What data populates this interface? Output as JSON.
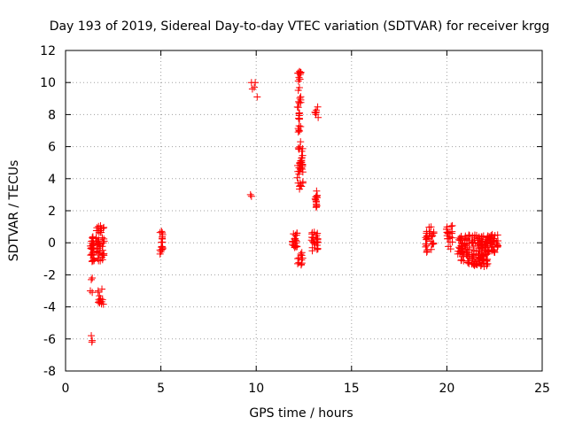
{
  "chart_data": {
    "type": "scatter",
    "title": "Day 193 of 2019, Sidereal Day-to-day VTEC variation (SDTVAR) for receiver krgg",
    "xlabel": "GPS time / hours",
    "ylabel": "SDTVAR / TECUs",
    "xlim": [
      0,
      25
    ],
    "ylim": [
      -8,
      12
    ],
    "xticks": [
      0,
      5,
      10,
      15,
      20,
      25
    ],
    "yticks": [
      -8,
      -6,
      -4,
      -2,
      0,
      2,
      4,
      6,
      8,
      10,
      12
    ],
    "grid": true,
    "marker": "plus",
    "color": "#ff0000",
    "clusters": [
      {
        "x": [
          1.3,
          1.5
        ],
        "y": [
          -1.2,
          0.6
        ],
        "n": 30
      },
      {
        "x": [
          1.6,
          2.05
        ],
        "y": [
          -1.2,
          1.1
        ],
        "n": 45
      },
      {
        "x": [
          1.7,
          2.0
        ],
        "y": [
          -3.9,
          -2.8
        ],
        "n": 14
      },
      {
        "x": [
          4.95,
          5.1
        ],
        "y": [
          -0.8,
          0.8
        ],
        "n": 20
      },
      {
        "x": [
          11.85,
          12.15
        ],
        "y": [
          -0.3,
          0.7
        ],
        "n": 20
      },
      {
        "x": [
          12.15,
          12.45
        ],
        "y": [
          -1.4,
          -0.6
        ],
        "n": 12
      },
      {
        "x": [
          12.15,
          12.45
        ],
        "y": [
          3.3,
          6.4
        ],
        "n": 40
      },
      {
        "x": [
          12.15,
          12.35
        ],
        "y": [
          6.8,
          10.8
        ],
        "n": 35
      },
      {
        "x": [
          12.9,
          13.25
        ],
        "y": [
          -0.6,
          0.7
        ],
        "n": 25
      },
      {
        "x": [
          13.0,
          13.2
        ],
        "y": [
          2.2,
          3.5
        ],
        "n": 14
      },
      {
        "x": [
          13.05,
          13.25
        ],
        "y": [
          7.6,
          8.5
        ],
        "n": 8
      },
      {
        "x": [
          18.85,
          19.35
        ],
        "y": [
          -0.6,
          1.0
        ],
        "n": 30
      },
      {
        "x": [
          19.95,
          20.3
        ],
        "y": [
          -0.4,
          1.1
        ],
        "n": 22
      },
      {
        "x": [
          20.55,
          21.2
        ],
        "y": [
          -1.3,
          0.6
        ],
        "n": 60
      },
      {
        "x": [
          21.3,
          22.15
        ],
        "y": [
          -1.5,
          0.5
        ],
        "n": 110
      },
      {
        "x": [
          22.15,
          22.7
        ],
        "y": [
          -0.6,
          0.6
        ],
        "n": 40
      }
    ],
    "points": [
      [
        1.3,
        -0.2
      ],
      [
        1.35,
        -2.3
      ],
      [
        1.4,
        -2.2
      ],
      [
        1.3,
        -3.0
      ],
      [
        1.4,
        -3.1
      ],
      [
        1.35,
        -5.8
      ],
      [
        1.4,
        -6.1
      ],
      [
        1.38,
        -6.2
      ],
      [
        9.7,
        3.0
      ],
      [
        9.75,
        2.9
      ],
      [
        9.75,
        10.0
      ],
      [
        9.8,
        9.6
      ],
      [
        9.9,
        9.7
      ],
      [
        9.95,
        10.0
      ],
      [
        10.05,
        9.1
      ]
    ]
  }
}
